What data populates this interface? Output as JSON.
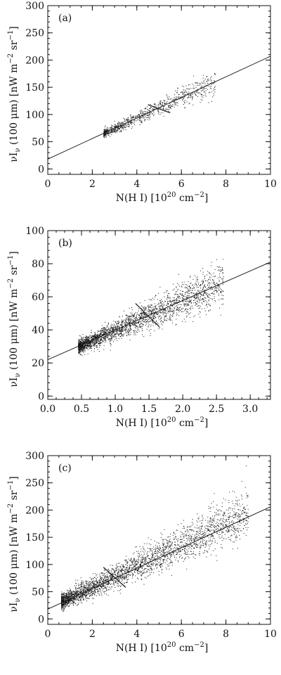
{
  "chart_data": [
    {
      "type": "scatter",
      "panel_label": "(a)",
      "title": "",
      "xlabel": "N(H I)",
      "xunit_text": "[10",
      "xunit_exp": "20",
      "xunit_rest": " cm",
      "xunit_exp2": "−2",
      "xunit_close": "]",
      "ylabel_prefix": "νI",
      "ylabel_sub": "ν",
      "ylabel_paren": " (100 μm)",
      "yunit_text": "[nW m",
      "yunit_exp": "−2",
      "yunit_rest": " sr",
      "yunit_exp2": "−1",
      "yunit_close": "]",
      "xlim": [
        0,
        10
      ],
      "ylim": [
        -10,
        300
      ],
      "xticks": [
        0,
        2,
        4,
        6,
        8,
        10
      ],
      "xtick_labels": [
        "0",
        "2",
        "4",
        "6",
        "8",
        "10"
      ],
      "yticks": [
        0,
        50,
        100,
        150,
        200,
        250,
        300
      ],
      "ytick_labels": [
        "0",
        "50",
        "100",
        "150",
        "200",
        "250",
        "300"
      ],
      "fit_line": {
        "x": [
          0,
          10
        ],
        "y": [
          18,
          207
        ]
      },
      "break_mark": {
        "x": [
          4.5,
          5.5
        ],
        "y": [
          118,
          103
        ]
      },
      "scatter": {
        "x_range": [
          2.5,
          7.5
        ],
        "slope": 19,
        "intercept": 18,
        "scatter": 6,
        "n": 900,
        "seed": 11
      }
    },
    {
      "type": "scatter",
      "panel_label": "(b)",
      "title": "",
      "xlabel": "N(H I)",
      "xunit_text": "[10",
      "xunit_exp": "20",
      "xunit_rest": " cm",
      "xunit_exp2": "−2",
      "xunit_close": "]",
      "ylabel_prefix": "νI",
      "ylabel_sub": "ν",
      "ylabel_paren": " (100 μm)",
      "yunit_text": "[nW m",
      "yunit_exp": "−2",
      "yunit_rest": " sr",
      "yunit_exp2": "−1",
      "yunit_close": "]",
      "xlim": [
        0,
        3.3
      ],
      "ylim": [
        -2,
        100
      ],
      "xticks": [
        0,
        0.5,
        1.0,
        1.5,
        2.0,
        2.5,
        3.0
      ],
      "xtick_labels": [
        "0.0",
        "0.5",
        "1.0",
        "1.5",
        "2.0",
        "2.5",
        "3.0"
      ],
      "yticks": [
        0,
        20,
        40,
        60,
        80,
        100
      ],
      "ytick_labels": [
        "0",
        "20",
        "40",
        "60",
        "80",
        "100"
      ],
      "fit_line": {
        "x": [
          0,
          3.3
        ],
        "y": [
          22,
          81
        ]
      },
      "break_mark": {
        "x": [
          1.3,
          1.65
        ],
        "y": [
          56,
          42
        ]
      },
      "scatter": {
        "x_range": [
          0.45,
          2.6
        ],
        "slope": 17.9,
        "intercept": 22,
        "scatter": 3.2,
        "n": 2600,
        "seed": 23
      }
    },
    {
      "type": "scatter",
      "panel_label": "(c)",
      "title": "",
      "xlabel": "N(H I)",
      "xunit_text": "[10",
      "xunit_exp": "20",
      "xunit_rest": " cm",
      "xunit_exp2": "−2",
      "xunit_close": "]",
      "ylabel_prefix": "νI",
      "ylabel_sub": "ν",
      "ylabel_paren": " (100 μm)",
      "yunit_text": "[nW m",
      "yunit_exp": "−2",
      "yunit_rest": " sr",
      "yunit_exp2": "−1",
      "yunit_close": "]",
      "xlim": [
        0,
        10
      ],
      "ylim": [
        -10,
        300
      ],
      "xticks": [
        0,
        2,
        4,
        6,
        8,
        10
      ],
      "xtick_labels": [
        "0",
        "2",
        "4",
        "6",
        "8",
        "10"
      ],
      "yticks": [
        0,
        50,
        100,
        150,
        200,
        250,
        300
      ],
      "ytick_labels": [
        "0",
        "50",
        "100",
        "150",
        "200",
        "250",
        "300"
      ],
      "fit_line": {
        "x": [
          0,
          10
        ],
        "y": [
          18,
          206
        ]
      },
      "break_mark": {
        "x": [
          2.5,
          3.5
        ],
        "y": [
          95,
          58
        ]
      },
      "scatter": {
        "x_range": [
          0.6,
          9.0
        ],
        "slope": 19,
        "intercept": 18,
        "scatter": 10,
        "n": 3000,
        "seed": 37
      }
    }
  ]
}
